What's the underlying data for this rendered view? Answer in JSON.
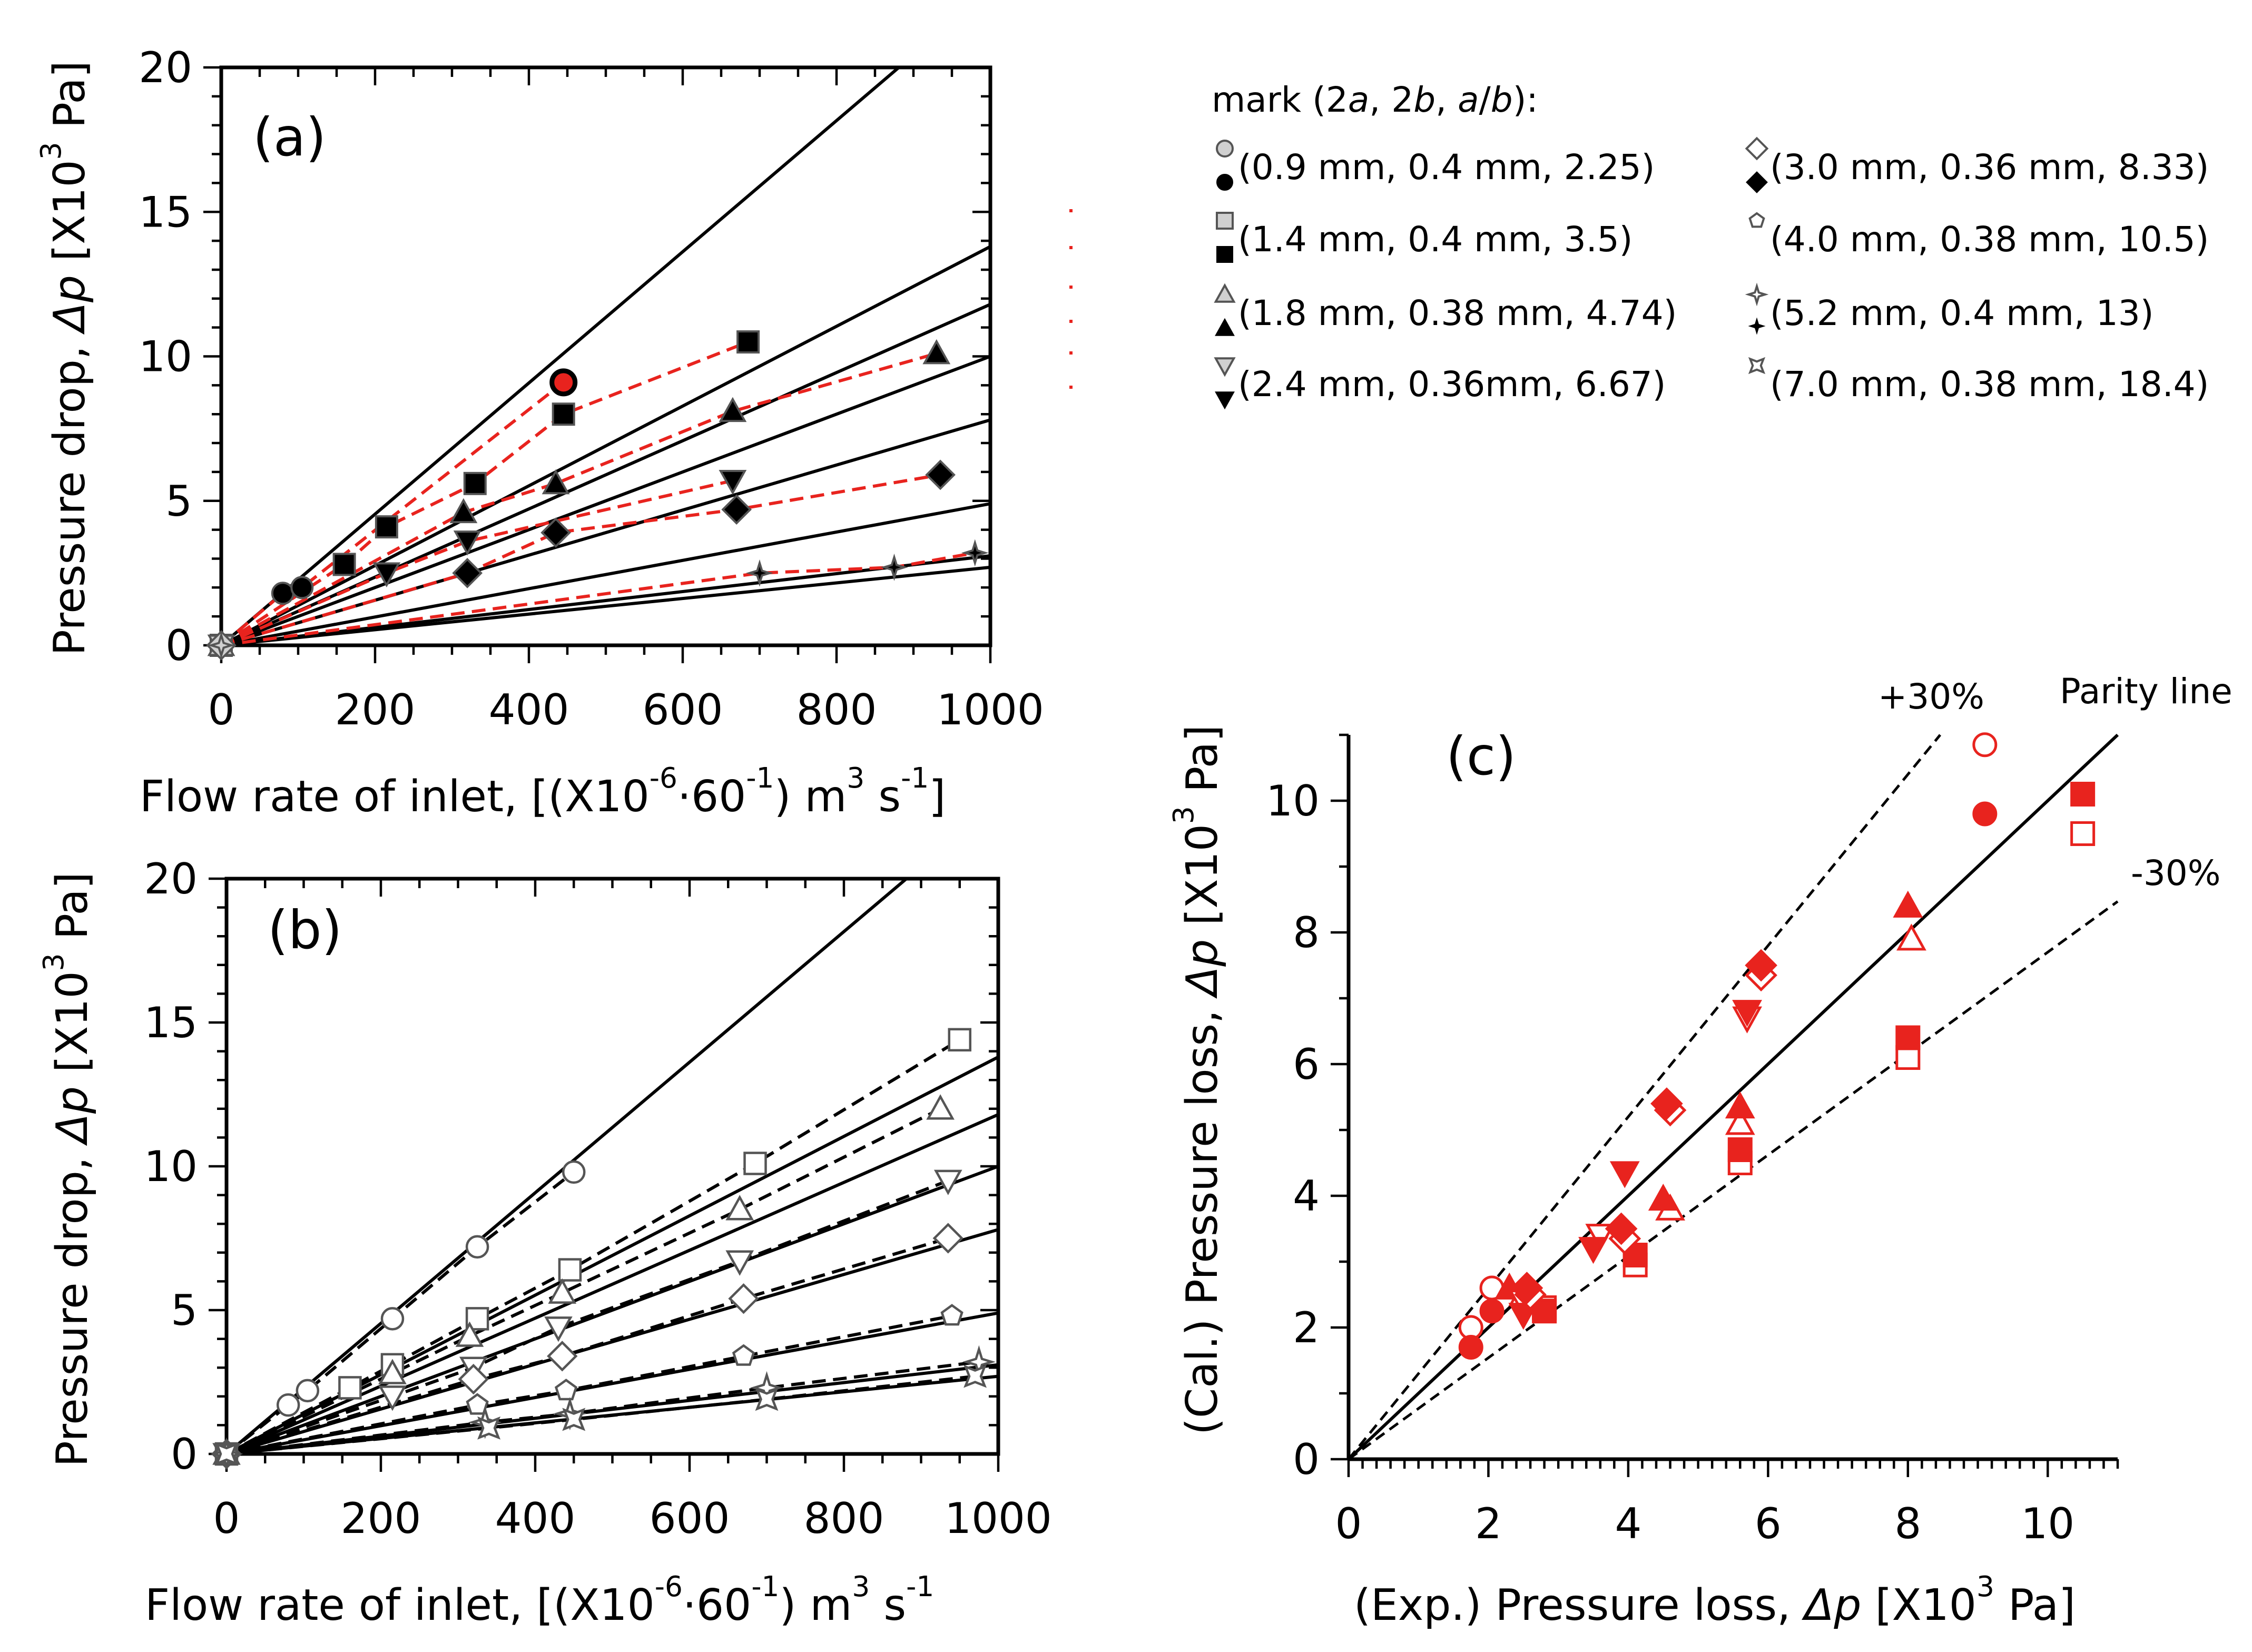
{
  "chart_data": [
    {
      "type": "scatter",
      "panel_label": "(a)",
      "title": "",
      "xlabel_main": "Flow rate of inlet, [(X10",
      "xlabel_parts": [
        {
          "text": "Flow rate of inlet, [(X10"
        },
        {
          "text": "-6",
          "sup": true
        },
        {
          "text": "·60"
        },
        {
          "text": "-1",
          "sup": true
        },
        {
          "text": ") m"
        },
        {
          "text": "3",
          "sup": true
        },
        {
          "text": " s"
        },
        {
          "text": "-1",
          "sup": true
        },
        {
          "text": "]"
        }
      ],
      "ylabel_parts": [
        {
          "text": "Pressure drop, "
        },
        {
          "text": "Δp",
          "italic": true
        },
        {
          "text": " [X10"
        },
        {
          "text": "3",
          "sup": true
        },
        {
          "text": " Pa]"
        }
      ],
      "xlim": [
        0,
        1000
      ],
      "ylim": [
        0,
        20
      ],
      "xticks": [
        0,
        200,
        400,
        600,
        800,
        1000
      ],
      "yticks": [
        0,
        5,
        10,
        15,
        20
      ],
      "solid_line_slopes": [
        0.0227,
        0.0138,
        0.0118,
        0.01,
        0.0078,
        0.0049,
        0.0031,
        0.0027
      ],
      "series": [
        {
          "name": "(0.9 mm, 0.4 mm, 2.25)",
          "marker": "circle",
          "fill": "solid",
          "x": [
            0,
            80,
            105,
            445
          ],
          "y": [
            0,
            1.8,
            2.0,
            9.1
          ]
        },
        {
          "name": "(1.4 mm, 0.4 mm, 3.5)",
          "marker": "square",
          "fill": "solid",
          "x": [
            0,
            160,
            215,
            330,
            445,
            685
          ],
          "y": [
            0,
            2.8,
            4.1,
            5.6,
            8.0,
            10.5
          ]
        },
        {
          "name": "(1.8 mm, 0.38 mm, 4.74)",
          "marker": "triangle",
          "fill": "solid",
          "x": [
            0,
            315,
            435,
            665,
            930
          ],
          "y": [
            0,
            4.6,
            5.6,
            8.1,
            10.1
          ]
        },
        {
          "name": "(2.4 mm, 0.36mm, 6.67)",
          "marker": "triangle-down",
          "fill": "solid",
          "x": [
            0,
            215,
            320,
            665
          ],
          "y": [
            0,
            2.5,
            3.6,
            5.7
          ]
        },
        {
          "name": "(3.0 mm, 0.36 mm, 8.33)",
          "marker": "diamond",
          "fill": "solid",
          "x": [
            0,
            320,
            435,
            670,
            935
          ],
          "y": [
            0,
            2.5,
            3.9,
            4.7,
            5.9
          ]
        },
        {
          "name": "(5.2 mm, 0.4 mm, 13)",
          "marker": "star4",
          "fill": "solid",
          "x": [
            0,
            700,
            875,
            980
          ],
          "y": [
            0,
            2.5,
            2.7,
            3.2
          ]
        }
      ]
    },
    {
      "type": "scatter",
      "panel_label": "(b)",
      "title": "",
      "xlabel_parts": [
        {
          "text": "Flow rate of inlet, [(X10"
        },
        {
          "text": "-6",
          "sup": true
        },
        {
          "text": "·60"
        },
        {
          "text": "-1",
          "sup": true
        },
        {
          "text": ") m"
        },
        {
          "text": "3",
          "sup": true
        },
        {
          "text": " s"
        },
        {
          "text": "-1",
          "sup": true
        }
      ],
      "ylabel_parts": [
        {
          "text": "Pressure drop, "
        },
        {
          "text": "Δp",
          "italic": true
        },
        {
          "text": " [X10"
        },
        {
          "text": "3",
          "sup": true
        },
        {
          "text": " Pa]"
        }
      ],
      "xlim": [
        0,
        1000
      ],
      "ylim": [
        0,
        20
      ],
      "xticks": [
        0,
        200,
        400,
        600,
        800,
        1000
      ],
      "yticks": [
        0,
        5,
        10,
        15,
        20
      ],
      "solid_line_slopes": [
        0.0227,
        0.0138,
        0.0118,
        0.01,
        0.0078,
        0.0049,
        0.0031,
        0.0027
      ],
      "series": [
        {
          "name": "(0.9 mm, 0.4 mm, 2.25)",
          "marker": "circle",
          "fill": "open",
          "x": [
            0,
            80,
            105,
            215,
            325,
            450
          ],
          "y": [
            0,
            1.7,
            2.2,
            4.7,
            7.2,
            9.8
          ]
        },
        {
          "name": "(1.4 mm, 0.4 mm, 3.5)",
          "marker": "square",
          "fill": "open",
          "x": [
            0,
            160,
            215,
            325,
            445,
            685,
            950
          ],
          "y": [
            0,
            2.3,
            3.1,
            4.7,
            6.4,
            10.1,
            14.4
          ]
        },
        {
          "name": "(1.8 mm, 0.38 mm, 4.74)",
          "marker": "triangle",
          "fill": "open",
          "x": [
            0,
            215,
            315,
            435,
            665,
            925
          ],
          "y": [
            0,
            2.8,
            4.1,
            5.6,
            8.5,
            12.0
          ]
        },
        {
          "name": "(2.4 mm, 0.36mm, 6.67)",
          "marker": "triangle-down",
          "fill": "open",
          "x": [
            0,
            215,
            320,
            430,
            665,
            935
          ],
          "y": [
            0,
            2.0,
            3.0,
            4.4,
            6.7,
            9.5
          ]
        },
        {
          "name": "(3.0 mm, 0.36 mm, 8.33)",
          "marker": "diamond",
          "fill": "open",
          "x": [
            0,
            320,
            435,
            670,
            935
          ],
          "y": [
            0,
            2.6,
            3.4,
            5.4,
            7.5
          ]
        },
        {
          "name": "(4.0 mm, 0.38 mm, 10.5)",
          "marker": "pentagon",
          "fill": "open",
          "x": [
            0,
            325,
            440,
            670,
            940
          ],
          "y": [
            0,
            1.7,
            2.2,
            3.4,
            4.8
          ]
        },
        {
          "name": "(5.2 mm, 0.4 mm, 13)",
          "marker": "star4",
          "fill": "open",
          "x": [
            0,
            335,
            445,
            700,
            975
          ],
          "y": [
            0,
            1.1,
            1.4,
            2.3,
            3.2
          ]
        },
        {
          "name": "(7.0 mm, 0.38 mm, 18.4)",
          "marker": "star-square",
          "fill": "open",
          "x": [
            0,
            340,
            450,
            700,
            970
          ],
          "y": [
            0,
            0.9,
            1.2,
            1.9,
            2.7
          ]
        }
      ]
    },
    {
      "type": "scatter",
      "panel_label": "(c)",
      "title": "",
      "xlabel_parts": [
        {
          "text": "(Exp.) Pressure loss, "
        },
        {
          "text": "Δp",
          "italic": true
        },
        {
          "text": " [X10"
        },
        {
          "text": "3",
          "sup": true
        },
        {
          "text": " Pa]"
        }
      ],
      "ylabel_parts": [
        {
          "text": "(Cal.) Pressure loss, "
        },
        {
          "text": "Δp",
          "italic": true
        },
        {
          "text": " [X10"
        },
        {
          "text": "3",
          "sup": true
        },
        {
          "text": " Pa]"
        }
      ],
      "xlim": [
        0,
        11
      ],
      "ylim": [
        0,
        11
      ],
      "xticks": [
        0,
        2,
        4,
        6,
        8,
        10
      ],
      "yticks": [
        0,
        2,
        4,
        6,
        8,
        10
      ],
      "annotations": {
        "plus30": "+30%",
        "minus30": "-30%",
        "parity": "Parity line"
      },
      "series": [
        {
          "name": "circle open",
          "marker": "circle",
          "fill": "open",
          "x": [
            1.75,
            2.05,
            9.1
          ],
          "y": [
            2.0,
            2.6,
            10.85
          ]
        },
        {
          "name": "circle solid",
          "marker": "circle",
          "fill": "solid",
          "x": [
            1.75,
            2.05,
            9.1
          ],
          "y": [
            1.7,
            2.25,
            9.8
          ]
        },
        {
          "name": "square open",
          "marker": "square",
          "fill": "open",
          "x": [
            2.8,
            4.1,
            5.6,
            8.0,
            10.5
          ],
          "y": [
            2.3,
            2.95,
            4.5,
            6.1,
            9.5
          ]
        },
        {
          "name": "square solid",
          "marker": "square",
          "fill": "solid",
          "x": [
            2.8,
            4.1,
            5.6,
            8.0,
            10.5
          ],
          "y": [
            2.25,
            3.1,
            4.7,
            6.4,
            10.1
          ]
        },
        {
          "name": "triangle open",
          "marker": "triangle",
          "fill": "open",
          "x": [
            2.5,
            4.6,
            5.6,
            8.05
          ],
          "y": [
            2.5,
            3.8,
            5.1,
            7.9
          ]
        },
        {
          "name": "triangle solid",
          "marker": "triangle",
          "fill": "solid",
          "x": [
            2.3,
            4.5,
            5.6,
            8.0
          ],
          "y": [
            2.6,
            3.95,
            5.35,
            8.4
          ]
        },
        {
          "name": "triangle-down open",
          "marker": "triangle-down",
          "fill": "open",
          "x": [
            2.5,
            3.6,
            5.7
          ],
          "y": [
            2.4,
            3.4,
            6.7
          ]
        },
        {
          "name": "triangle-down solid",
          "marker": "triangle-down",
          "fill": "solid",
          "x": [
            2.5,
            3.5,
            3.95,
            5.7
          ],
          "y": [
            2.2,
            3.2,
            4.35,
            6.8
          ]
        },
        {
          "name": "diamond open",
          "marker": "diamond",
          "fill": "open",
          "x": [
            2.6,
            3.95,
            4.6,
            5.9
          ],
          "y": [
            2.5,
            3.35,
            5.3,
            7.35
          ]
        },
        {
          "name": "diamond solid",
          "marker": "diamond",
          "fill": "solid",
          "x": [
            2.55,
            3.9,
            4.55,
            5.9
          ],
          "y": [
            2.6,
            3.5,
            5.4,
            7.5
          ]
        }
      ]
    }
  ],
  "legend": {
    "title_parts": [
      {
        "text": "mark (2"
      },
      {
        "text": "a",
        "italic": true
      },
      {
        "text": ", 2"
      },
      {
        "text": "b",
        "italic": true
      },
      {
        "text": ", "
      },
      {
        "text": "a",
        "italic": true
      },
      {
        "text": "/"
      },
      {
        "text": "b",
        "italic": true
      },
      {
        "text": "):"
      }
    ],
    "entries": [
      {
        "marker": "circle",
        "label": "(0.9 mm, 0.4 mm, 2.25)",
        "pair": true
      },
      {
        "marker": "square",
        "label": "(1.4 mm, 0.4 mm, 3.5)",
        "pair": true
      },
      {
        "marker": "triangle",
        "label": "(1.8 mm, 0.38 mm, 4.74)",
        "pair": true
      },
      {
        "marker": "triangle-down",
        "label": "(2.4 mm, 0.36mm, 6.67)",
        "pair": true
      },
      {
        "marker": "diamond",
        "label": "(3.0 mm, 0.36 mm, 8.33)",
        "pair": true
      },
      {
        "marker": "pentagon",
        "label": "(4.0 mm, 0.38 mm, 10.5)",
        "pair": false
      },
      {
        "marker": "star4",
        "label": "(5.2 mm, 0.4 mm, 13)",
        "pair": false
      },
      {
        "marker": "star-square",
        "label": "(7.0 mm, 0.38 mm, 18.4)",
        "pair": false
      }
    ]
  },
  "colors": {
    "axis": "#000000",
    "fit_dashed_a": "#e8231e",
    "marker_red": "#e8231e",
    "marker_gray": "#d0d0d0",
    "text": "#000000"
  }
}
